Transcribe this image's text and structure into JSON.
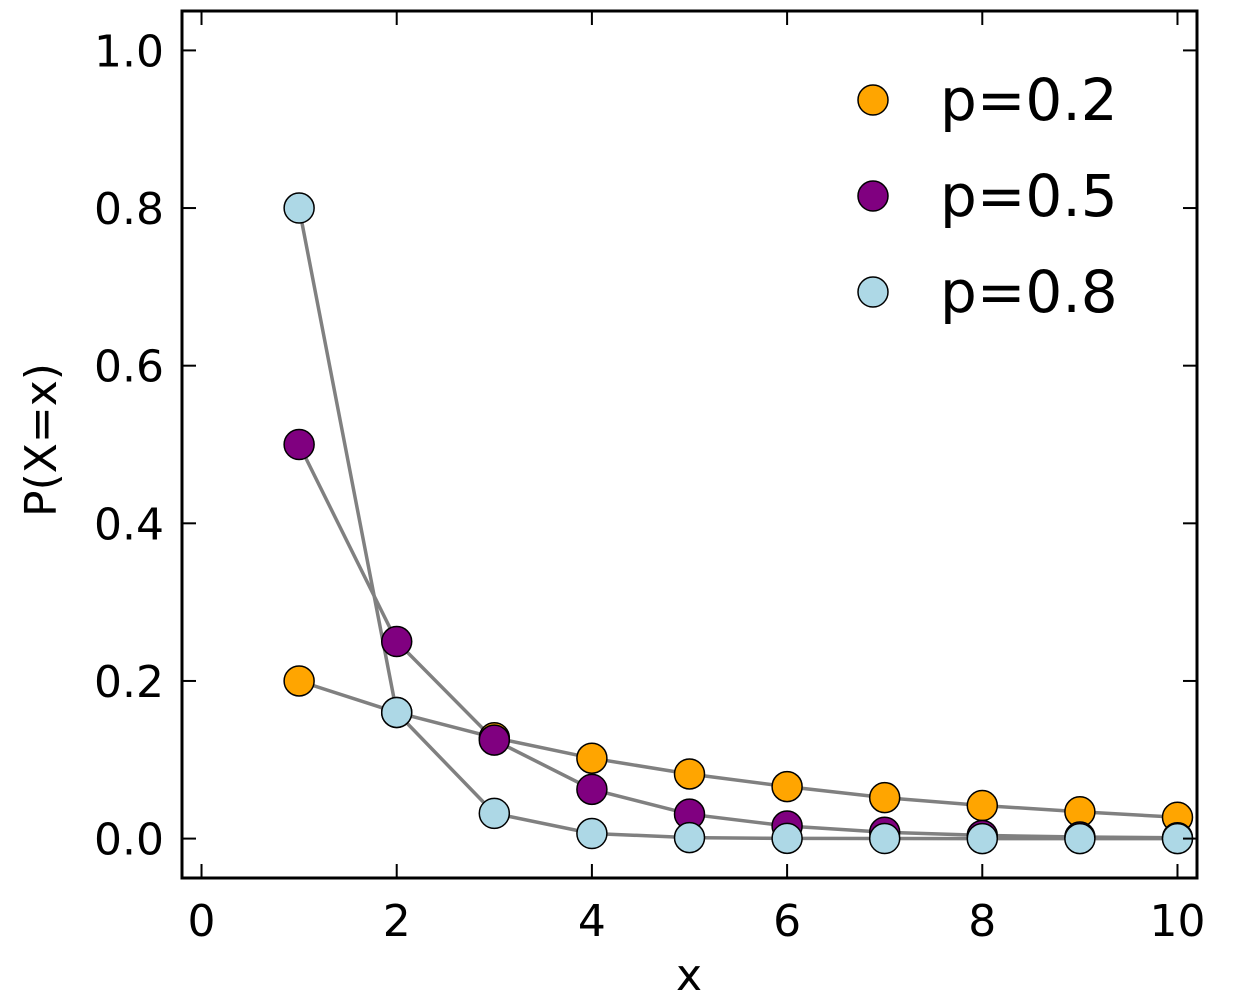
{
  "chart_data": {
    "type": "scatter",
    "xlabel": "x",
    "ylabel": "P(X=x)",
    "xlim": [
      -0.2,
      10.2
    ],
    "ylim": [
      -0.05,
      1.05
    ],
    "xticks": [
      "0",
      "2",
      "4",
      "6",
      "8",
      "10"
    ],
    "yticks": [
      "0.0",
      "0.2",
      "0.4",
      "0.6",
      "0.8",
      "1.0"
    ],
    "grid": false,
    "legend_position": "top-right",
    "connector_color": "#808080",
    "series": [
      {
        "name": "p=0.2",
        "color": "#FFA500",
        "x": [
          1,
          2,
          3,
          4,
          5,
          6,
          7,
          8,
          9,
          10
        ],
        "y": [
          0.2,
          0.16,
          0.128,
          0.102,
          0.082,
          0.066,
          0.052,
          0.042,
          0.034,
          0.027
        ]
      },
      {
        "name": "p=0.5",
        "color": "#800080",
        "x": [
          1,
          2,
          3,
          4,
          5,
          6,
          7,
          8,
          9,
          10
        ],
        "y": [
          0.5,
          0.25,
          0.125,
          0.0625,
          0.031,
          0.016,
          0.008,
          0.004,
          0.002,
          0.001
        ]
      },
      {
        "name": "p=0.8",
        "color": "#ADD8E6",
        "x": [
          1,
          2,
          3,
          4,
          5,
          6,
          7,
          8,
          9,
          10
        ],
        "y": [
          0.8,
          0.16,
          0.032,
          0.0064,
          0.0013,
          0.0003,
          0.0001,
          0.0,
          0.0,
          0.0
        ]
      }
    ]
  }
}
